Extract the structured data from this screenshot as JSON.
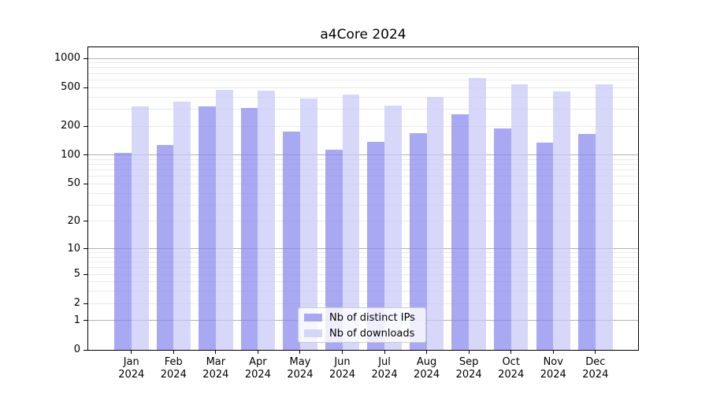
{
  "chart_data": {
    "type": "bar",
    "title": "a4Core 2024",
    "categories": [
      "Jan 2024",
      "Feb 2024",
      "Mar 2024",
      "Apr 2024",
      "May 2024",
      "Jun 2024",
      "Jul 2024",
      "Aug 2024",
      "Sep 2024",
      "Oct 2024",
      "Nov 2024",
      "Dec 2024"
    ],
    "series": [
      {
        "name": "Nb of distinct IPs",
        "color": "#8888ee",
        "fill": "rgba(136,136,238,0.72)",
        "values": [
          105,
          128,
          320,
          308,
          176,
          113,
          137,
          170,
          264,
          188,
          135,
          165
        ]
      },
      {
        "name": "Nb of downloads",
        "color": "#ccccff",
        "fill": "rgba(200,200,248,0.72)",
        "values": [
          322,
          356,
          475,
          462,
          384,
          421,
          328,
          403,
          624,
          540,
          457,
          540
        ]
      }
    ],
    "yscale": "log1p",
    "yticks": [
      0,
      1,
      2,
      5,
      10,
      20,
      50,
      100,
      200,
      500,
      1000
    ],
    "major_grid_values": [
      1,
      10,
      100,
      1000
    ],
    "ylim": [
      0,
      1300
    ],
    "xlabel": "",
    "ylabel": "",
    "grid": true,
    "legend_position": "lower-center",
    "style": {
      "background": "#ffffff",
      "axis_color": "#000000",
      "major_grid_color": "#b0b0b0",
      "minor_grid_color": "#e9e9e9",
      "legend_border": "#cccccc",
      "legend_bg": "rgba(255,255,255,0.8)",
      "text_color": "#000000"
    }
  }
}
